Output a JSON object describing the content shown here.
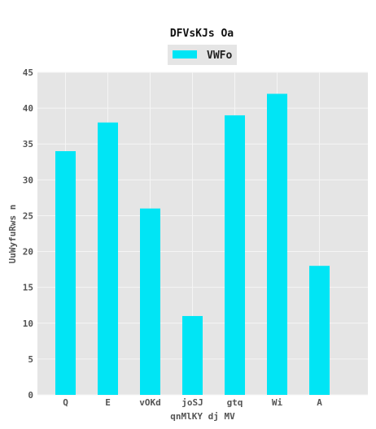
{
  "chart_data": {
    "type": "bar",
    "title": "DFVsKJs Oa",
    "xlabel": "qnMlKY dj MV",
    "ylabel": "UuWyfuRws n",
    "categories": [
      "Q",
      "E",
      "vOKd",
      "joSJ",
      "gtq",
      "Wi",
      "A"
    ],
    "series": [
      {
        "name": "VWFo",
        "values": [
          34,
          38,
          26,
          11,
          39,
          42,
          18
        ],
        "color": "#00e5f5"
      }
    ],
    "ylim": [
      0,
      45
    ],
    "yticks": [
      0,
      5,
      10,
      15,
      20,
      25,
      30,
      35,
      40,
      45
    ],
    "grid": true,
    "legend_position": "top-center",
    "background": "#e5e5e5",
    "grid_color": "#f5f5f5"
  }
}
